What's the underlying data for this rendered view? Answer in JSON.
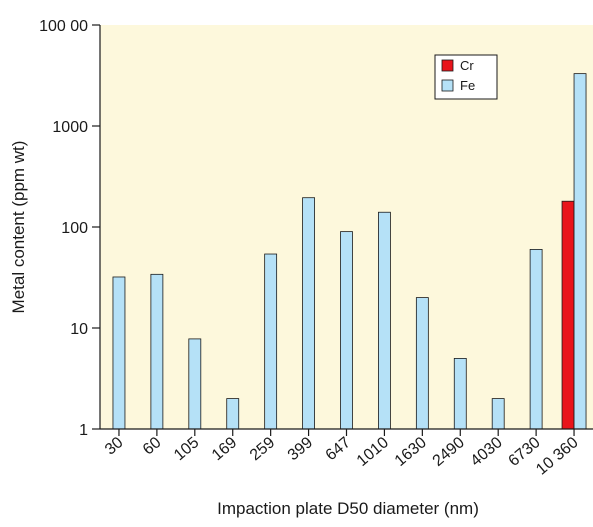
{
  "chart_data": {
    "type": "bar",
    "xlabel": "Impaction plate D50 diameter (nm)",
    "ylabel": "Metal content (ppm wt)",
    "yscale": "log",
    "ylim": [
      1,
      10000
    ],
    "y_tick_labels": [
      "1",
      "10",
      "100",
      "1000",
      "100 00"
    ],
    "categories": [
      "30",
      "60",
      "105",
      "169",
      "259",
      "399",
      "647",
      "1010",
      "1630",
      "2490",
      "4030",
      "6730",
      "10 360"
    ],
    "series": [
      {
        "name": "Cr",
        "color": "#e8141b",
        "values": [
          null,
          null,
          null,
          null,
          null,
          null,
          null,
          null,
          null,
          null,
          null,
          null,
          180
        ]
      },
      {
        "name": "Fe",
        "color": "#b5e1f7",
        "values": [
          32,
          34,
          7.8,
          2,
          54,
          195,
          90,
          140,
          20,
          5,
          2,
          60,
          3300
        ]
      }
    ],
    "plot_background": "#fdf8dc",
    "legend_position": "top-right",
    "grid": false
  }
}
